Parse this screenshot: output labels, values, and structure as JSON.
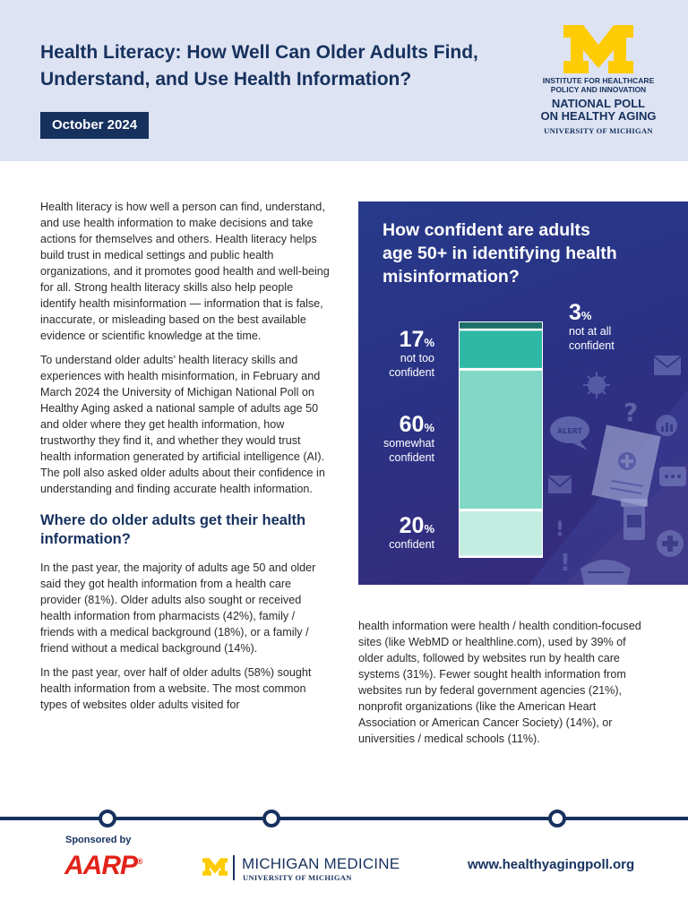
{
  "header": {
    "title_line1": "Health Literacy: How Well Can Older Adults Find,",
    "title_line2": "Understand, and Use Health Information?",
    "date": "October 2024",
    "logo": {
      "institute_line1": "INSTITUTE FOR HEALTHCARE",
      "institute_line2": "POLICY AND INNOVATION",
      "poll_line1": "NATIONAL POLL",
      "poll_line2": "ON HEALTHY AGING",
      "university": "UNIVERSITY OF MICHIGAN",
      "color": "#ffcb05"
    }
  },
  "body": {
    "para1": "Health literacy is how well a person can find, understand, and use health information to make decisions and take actions for themselves and others. Health literacy helps build trust in medical settings and public health organizations, and it promotes good health and well-being for all. Strong health literacy skills also help people identify health misinformation — information that is false, inaccurate, or misleading based on the best available evidence or scientific knowledge at the time.",
    "para2": "To understand older adults’ health literacy skills and experiences with health misinformation, in February and March 2024 the University of Michigan National Poll on Healthy Aging asked a national sample of adults age 50 and older where they get health information, how trustworthy they find it, and whether they would trust health information generated by artificial intelligence (AI). The poll also asked older adults about their confidence in understanding and finding accurate health information.",
    "heading": "Where do older adults get their health information?",
    "para3": "In the past year, the majority of adults age 50 and older said they got health information from a health care provider (81%). Older adults also sought or received health information from pharmacists (42%), family / friends with a medical background (18%), or a family / friend without a medical background (14%).",
    "para4": "In the past year, over half of older adults (58%) sought health information from a website. The most common types of websites older adults visited for",
    "para5": "health information were health / health condition-focused sites (like WebMD or healthline.com), used by 39% of older adults, followed by websites run by health care systems (31%). Fewer sought health information from websites run by federal government agencies (21%), nonprofit organizations (like the American Heart Association or American Cancer Society) (14%), or universities / medical schools (11%)."
  },
  "infographic": {
    "title_line1": "How confident are adults",
    "title_line2": "age 50+ in identifying health",
    "title_line3": "misinformation?",
    "alert_text": "ALERT",
    "colors": {
      "confident": "#c4ede2",
      "somewhat_confident": "#82d8c6",
      "not_too_confident": "#2fb8a6",
      "not_at_all_confident": "#1d6f6a"
    }
  },
  "chart_data": {
    "type": "bar",
    "title": "How confident are adults age 50+ in identifying health misinformation?",
    "stacked": true,
    "categories": [
      "confident",
      "somewhat confident",
      "not too confident",
      "not at all confident"
    ],
    "values": [
      20,
      60,
      17,
      3
    ],
    "unit": "%",
    "labels": [
      {
        "value": "20",
        "unit": "%",
        "line1": "confident",
        "line2": ""
      },
      {
        "value": "60",
        "unit": "%",
        "line1": "somewhat",
        "line2": "confident"
      },
      {
        "value": "17",
        "unit": "%",
        "line1": "not too",
        "line2": "confident"
      },
      {
        "value": "3",
        "unit": "%",
        "line1": "not at all",
        "line2": "confident"
      }
    ]
  },
  "footer": {
    "sponsored_by": "Sponsored by",
    "aarp": "AARP",
    "aarp_mark": "®",
    "michigan_medicine": "MICHIGAN MEDICINE",
    "michigan_medicine_univ": "UNIVERSITY OF MICHIGAN",
    "url": "www.healthyagingpoll.org"
  }
}
